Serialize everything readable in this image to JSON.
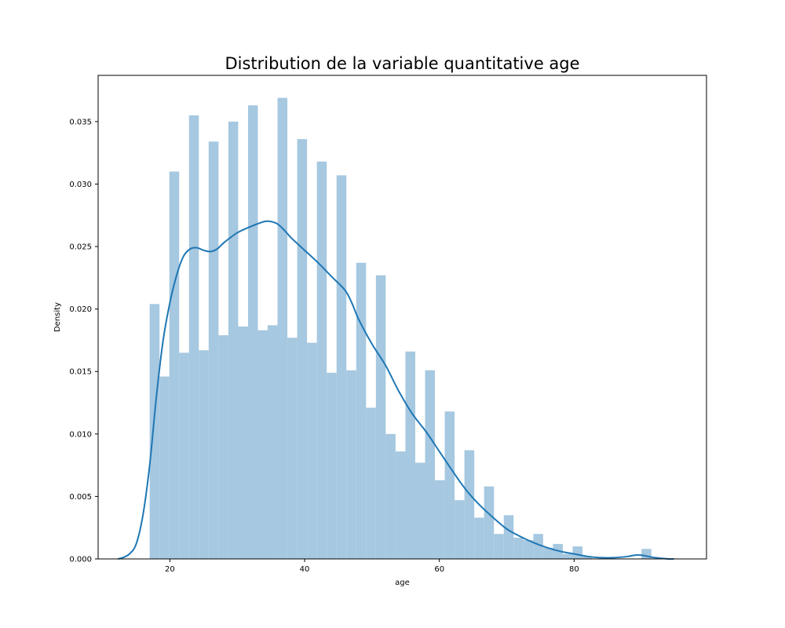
{
  "chart_data": {
    "type": "bar",
    "title": "Distribution de la variable quantitative age",
    "xlabel": "age",
    "ylabel": "Density",
    "xlim": [
      9.35,
      99.65
    ],
    "ylim": [
      0,
      0.0387
    ],
    "x_ticks": [
      20,
      40,
      60,
      80
    ],
    "y_ticks": [
      0.0,
      0.005,
      0.01,
      0.015,
      0.02,
      0.025,
      0.03,
      0.035
    ],
    "y_tick_labels": [
      "0.000",
      "0.005",
      "0.010",
      "0.015",
      "0.020",
      "0.025",
      "0.030",
      "0.035"
    ],
    "grid": false,
    "legend": "none",
    "bar_color": "#a6c8e0",
    "line_color": "#1f77b4",
    "histogram": {
      "bin_start": 17,
      "bin_width": 1.46,
      "densities": [
        0.0204,
        0.0146,
        0.031,
        0.0165,
        0.0355,
        0.0167,
        0.0334,
        0.0179,
        0.035,
        0.0186,
        0.0363,
        0.0183,
        0.0187,
        0.0369,
        0.0177,
        0.0336,
        0.0173,
        0.0318,
        0.0149,
        0.0307,
        0.0151,
        0.0237,
        0.0121,
        0.0227,
        0.01,
        0.0086,
        0.0166,
        0.0077,
        0.0151,
        0.0063,
        0.0118,
        0.0047,
        0.0087,
        0.0033,
        0.0058,
        0.002,
        0.0035,
        0.0017,
        0.0015,
        0.002,
        0.0009,
        0.0012,
        0.0004,
        0.001,
        0.0002,
        0.0,
        0.0,
        0.0,
        0.0,
        0.0,
        0.0008
      ]
    },
    "kde": {
      "x": [
        12.3,
        13,
        14,
        15,
        16,
        17,
        18,
        19,
        20,
        21,
        22,
        23,
        24,
        25,
        26,
        27,
        28,
        30,
        32,
        34,
        35,
        36,
        37,
        38,
        40,
        42,
        44,
        46,
        47,
        48,
        50,
        52,
        54,
        56,
        58,
        60,
        62,
        64,
        66,
        68,
        70,
        72,
        74,
        76,
        78,
        80,
        82,
        84,
        86,
        88,
        89,
        90,
        91,
        92,
        94,
        94.8
      ],
      "y": [
        0.0,
        0.0001,
        0.0004,
        0.0012,
        0.0035,
        0.0075,
        0.013,
        0.0175,
        0.0205,
        0.0227,
        0.0242,
        0.0248,
        0.0249,
        0.0247,
        0.0246,
        0.0248,
        0.0253,
        0.0261,
        0.0266,
        0.027,
        0.027,
        0.0268,
        0.0263,
        0.0257,
        0.0247,
        0.0237,
        0.0226,
        0.0215,
        0.0205,
        0.0192,
        0.0172,
        0.0155,
        0.0134,
        0.0116,
        0.0102,
        0.0086,
        0.007,
        0.0055,
        0.0043,
        0.0033,
        0.0024,
        0.0018,
        0.0013,
        0.0009,
        0.0006,
        0.0004,
        0.0002,
        0.0001,
        0.0001,
        0.0002,
        0.0003,
        0.0003,
        0.0002,
        0.0001,
        0.0,
        0.0
      ]
    }
  }
}
